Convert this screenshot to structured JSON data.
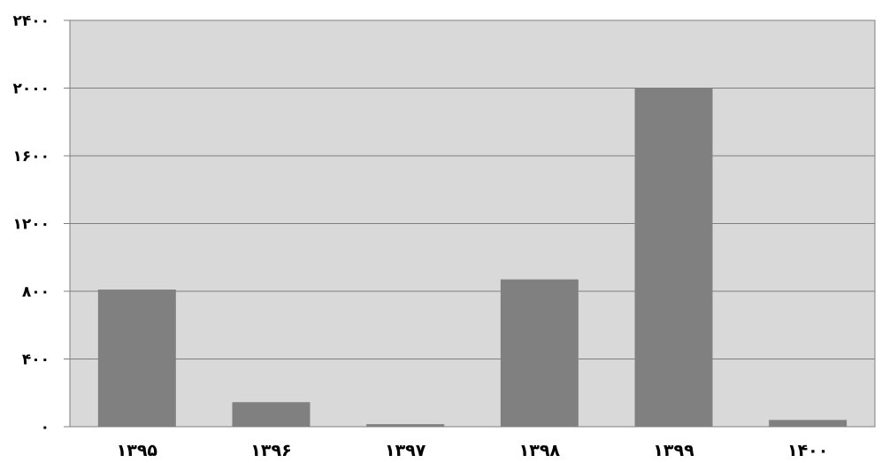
{
  "chart_data": {
    "type": "bar",
    "title": "",
    "xlabel": "",
    "ylabel": "",
    "categories": [
      "۱۳۹۵",
      "۱۳۹۶",
      "۱۳۹۷",
      "۱۳۹۸",
      "۱۳۹۹",
      "۱۴۰۰"
    ],
    "values": [
      810,
      145,
      15,
      870,
      2000,
      40
    ],
    "ylim": [
      0,
      2400
    ],
    "y_ticks": [
      0,
      400,
      800,
      1200,
      1600,
      2000,
      2400
    ],
    "y_tick_labels": [
      "۰",
      "۴۰۰",
      "۸۰۰",
      "۱۲۰۰",
      "۱۶۰۰",
      "۲۰۰۰",
      "۲۴۰۰"
    ],
    "grid": true,
    "legend": "none",
    "colors": {
      "bar": "#808080",
      "plot_background": "#d9d9d9",
      "gridline": "#7f7f7f",
      "axis": "#7f7f7f",
      "text": "#000000"
    }
  }
}
